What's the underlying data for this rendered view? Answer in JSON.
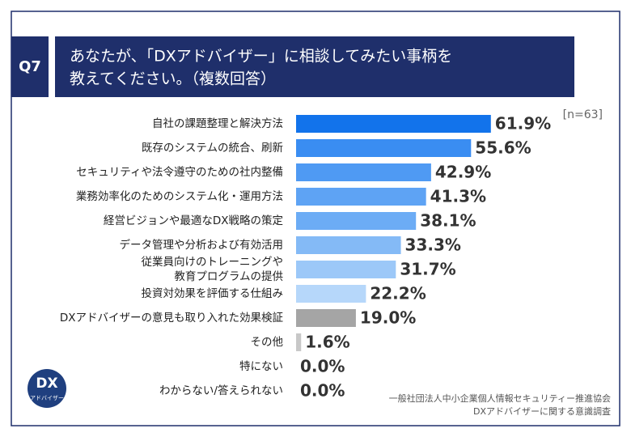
{
  "chart_data": {
    "type": "barh",
    "question": "Q7",
    "title_lines": [
      "あなたが、「DXアドバイザー」に相談してみたい事柄を",
      "教えてください。（複数回答）"
    ],
    "annotation": "[n=63]",
    "source_lines": [
      "一般社団法人中小企業個人情報セキュリティー推進協会",
      "DXアドバイザーに関する意識調査"
    ],
    "logo": {
      "mark": "DX",
      "caption": "アドバイザー"
    },
    "categories": [
      "自社の課題整理と解決方法",
      "既存のシステムの統合、刷新",
      "セキュリティや法令遵守のための社内整備",
      "業務効率化のためのシステム化・運用方法",
      "経営ビジョンや最適なDX戦略の策定",
      "データ管理や分析および有効活用",
      "従業員向けのトレーニングや\n教育プログラムの提供",
      "投資対効果を評価する仕組み",
      "DXアドバイザーの意見も取り入れた効果検証",
      "その他",
      "特にない",
      "わからない/答えられない"
    ],
    "values": [
      61.9,
      55.6,
      42.9,
      41.3,
      38.1,
      33.3,
      31.7,
      22.2,
      19.0,
      1.6,
      0.0,
      0.0
    ],
    "value_labels": [
      "61.9%",
      "55.6%",
      "42.9%",
      "41.3%",
      "38.1%",
      "33.3%",
      "31.7%",
      "22.2%",
      "19.0%",
      "1.6%",
      "0.0%",
      "0.0%"
    ],
    "colors": [
      "#1273eb",
      "#3a8df2",
      "#4f9af3",
      "#5ea3f4",
      "#6cacf5",
      "#84baf6",
      "#9cc8f8",
      "#b6d7fa",
      "#a5a5a5",
      "#c8c8c8",
      "#c8c8c8",
      "#c8c8c8"
    ],
    "xlim": [
      0,
      100
    ]
  }
}
